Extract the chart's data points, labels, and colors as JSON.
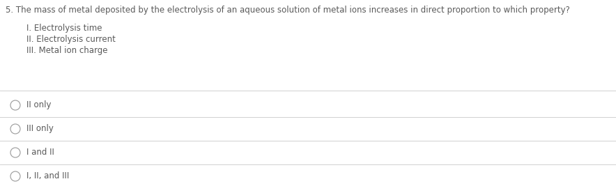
{
  "background_color": "#ffffff",
  "question": "5. The mass of metal deposited by the electrolysis of an aqueous solution of metal ions increases in direct proportion to which property?",
  "sub_items": [
    "I. Electrolysis time",
    "II. Electrolysis current",
    "III. Metal ion charge"
  ],
  "answer_choices": [
    "II only",
    "III only",
    "I and II",
    "I, II, and III"
  ],
  "question_fontsize": 8.5,
  "sub_item_fontsize": 8.5,
  "answer_fontsize": 8.5,
  "text_color": "#5a5a5a",
  "line_color": "#d0d0d0",
  "circle_color": "#999999",
  "fig_width": 8.84,
  "fig_height": 2.77,
  "dpi": 100
}
